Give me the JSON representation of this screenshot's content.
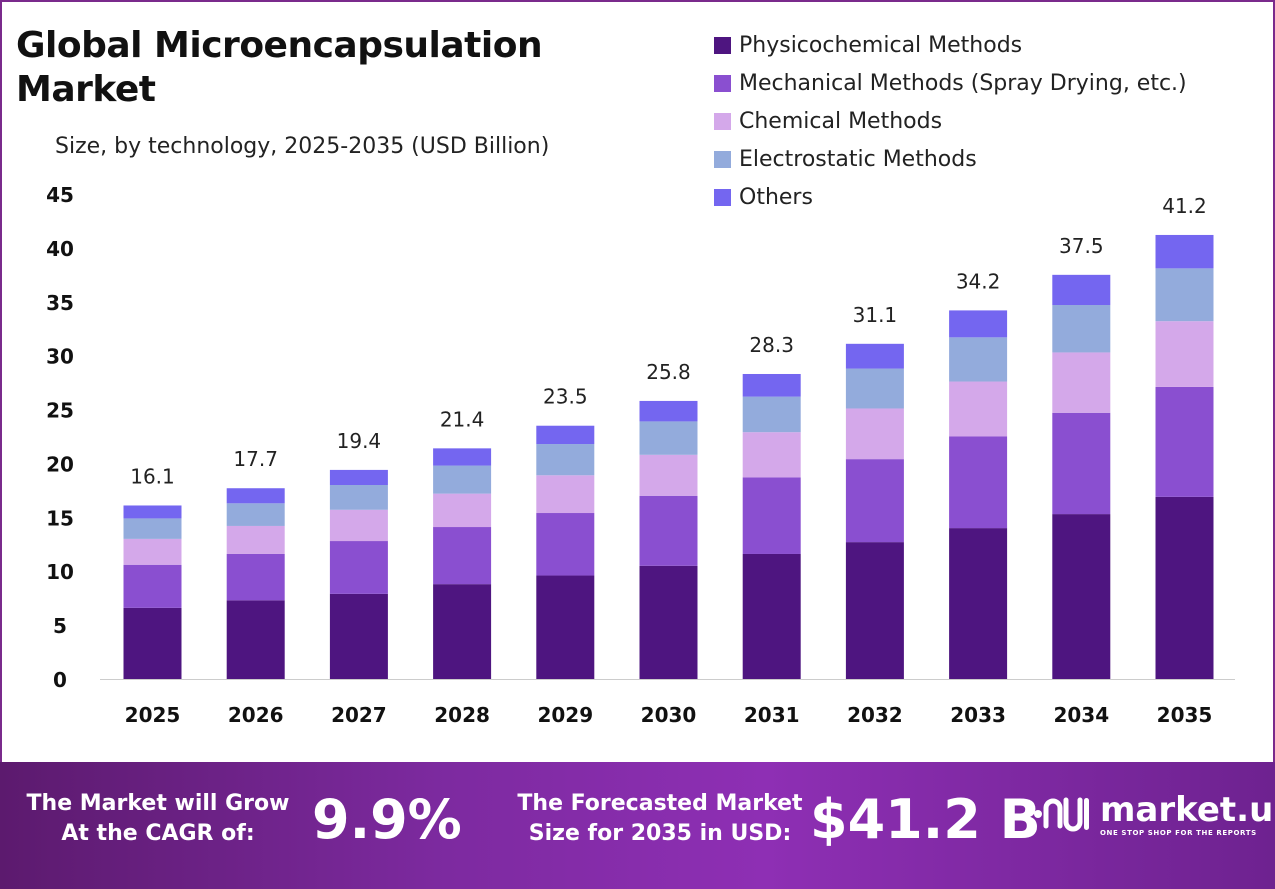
{
  "header": {
    "title": "Global Microencapsulation Market",
    "subtitle": "Size, by technology, 2025-2035 (USD Billion)"
  },
  "legend": [
    {
      "label": "Physicochemical Methods",
      "color": "#4e1580"
    },
    {
      "label": "Mechanical Methods (Spray Drying, etc.)",
      "color": "#8a4fd0"
    },
    {
      "label": "Chemical Methods",
      "color": "#d4a8ea"
    },
    {
      "label": "Electrostatic Methods",
      "color": "#93abdc"
    },
    {
      "label": "Others",
      "color": "#7466f0"
    }
  ],
  "chart_data": {
    "type": "bar",
    "stacked": true,
    "categories": [
      "2025",
      "2026",
      "2027",
      "2028",
      "2029",
      "2030",
      "2031",
      "2032",
      "2033",
      "2034",
      "2035"
    ],
    "ylim": [
      0,
      45
    ],
    "yticks": [
      0,
      5,
      10,
      15,
      20,
      25,
      30,
      35,
      40,
      45
    ],
    "totals": [
      16.1,
      17.7,
      19.4,
      21.4,
      23.5,
      25.8,
      28.3,
      31.1,
      34.2,
      37.5,
      41.2
    ],
    "series": [
      {
        "name": "Physicochemical Methods",
        "color": "#4e1580",
        "values": [
          6.6,
          7.3,
          7.9,
          8.8,
          9.6,
          10.5,
          11.6,
          12.7,
          14.0,
          15.3,
          16.9
        ]
      },
      {
        "name": "Mechanical Methods (Spray Drying, etc.)",
        "color": "#8a4fd0",
        "values": [
          4.0,
          4.3,
          4.9,
          5.3,
          5.8,
          6.5,
          7.1,
          7.7,
          8.5,
          9.4,
          10.2
        ]
      },
      {
        "name": "Chemical Methods",
        "color": "#d4a8ea",
        "values": [
          2.4,
          2.6,
          2.9,
          3.1,
          3.5,
          3.8,
          4.2,
          4.7,
          5.1,
          5.6,
          6.1
        ]
      },
      {
        "name": "Electrostatic Methods",
        "color": "#93abdc",
        "values": [
          1.9,
          2.1,
          2.3,
          2.6,
          2.9,
          3.1,
          3.3,
          3.7,
          4.1,
          4.4,
          4.9
        ]
      },
      {
        "name": "Others",
        "color": "#7466f0",
        "values": [
          1.2,
          1.4,
          1.4,
          1.6,
          1.7,
          1.9,
          2.1,
          2.3,
          2.5,
          2.8,
          3.1
        ]
      }
    ],
    "grid": false,
    "legend_position": "top-right"
  },
  "banner": {
    "cagr_label_line1": "The Market will Grow",
    "cagr_label_line2": "At the CAGR of:",
    "cagr_value": "9.9%",
    "forecast_label_line1": "The Forecasted Market",
    "forecast_label_line2": "Size for 2035 in USD:",
    "forecast_value": "$41.2 B",
    "brand_name": "market.us",
    "brand_tagline": "ONE STOP SHOP FOR THE REPORTS"
  }
}
